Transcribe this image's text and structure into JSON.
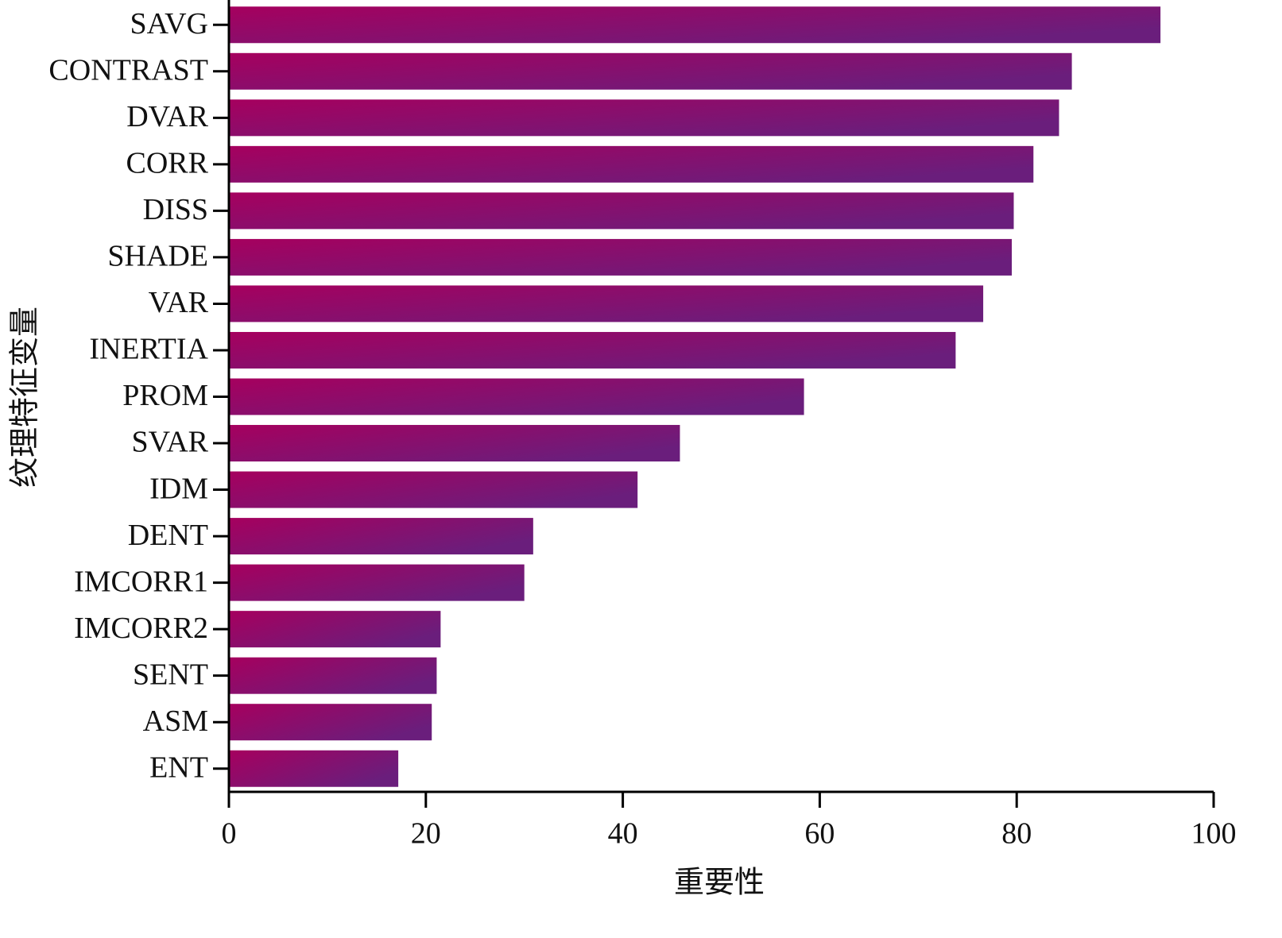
{
  "chart_data": {
    "type": "bar",
    "orientation": "horizontal",
    "x_label": "重要性",
    "y_label": "纹理特征变量",
    "categories": [
      "SAVG",
      "CONTRAST",
      "DVAR",
      "CORR",
      "DISS",
      "SHADE",
      "VAR",
      "INERTIA",
      "PROM",
      "SVAR",
      "IDM",
      "DENT",
      "IMCORR1",
      "IMCORR2",
      "SENT",
      "ASM",
      "ENT"
    ],
    "values": [
      94.6,
      85.6,
      84.3,
      81.7,
      79.7,
      79.5,
      76.6,
      73.8,
      58.4,
      45.8,
      41.5,
      30.9,
      30.0,
      21.5,
      21.1,
      20.6,
      17.2
    ],
    "gradient": [
      "#a6005e",
      "#6a1e7c"
    ],
    "xlim": [
      0,
      100
    ],
    "xticks": [
      0,
      20,
      40,
      60,
      80,
      100
    ],
    "grid": false
  }
}
